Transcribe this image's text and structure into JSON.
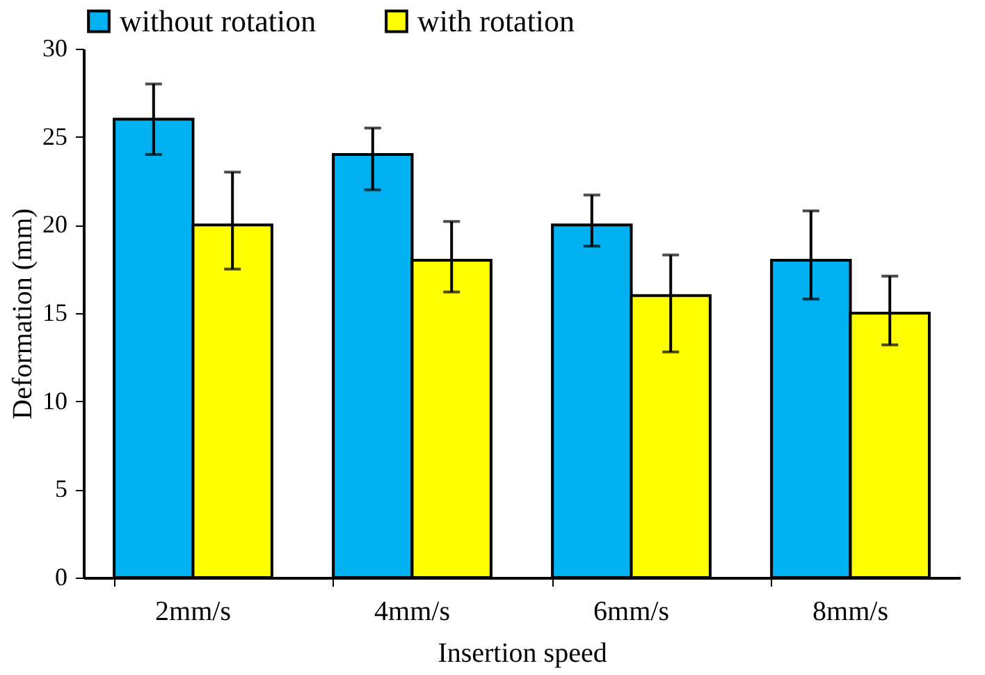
{
  "chart_data": {
    "type": "bar",
    "xlabel": "Insertion speed",
    "ylabel": "Deformation (mm)",
    "categories": [
      "2mm/s",
      "4mm/s",
      "6mm/s",
      "8mm/s"
    ],
    "series": [
      {
        "name": "without rotation",
        "color": "#00b0f0",
        "values": [
          26,
          24,
          20,
          18
        ],
        "errors": [
          [
            24,
            28
          ],
          [
            22,
            25.5
          ],
          [
            18.8,
            21.7
          ],
          [
            15.8,
            20.8
          ]
        ]
      },
      {
        "name": "with rotation",
        "color": "#ffff00",
        "values": [
          20,
          18,
          16,
          15
        ],
        "errors": [
          [
            17.5,
            23
          ],
          [
            16.2,
            20.2
          ],
          [
            12.8,
            18.3
          ],
          [
            13.2,
            17.1
          ]
        ]
      }
    ],
    "ylim": [
      0,
      30
    ],
    "yticks": [
      0,
      5,
      10,
      15,
      20,
      25,
      30
    ],
    "grid": false,
    "legend": "top"
  }
}
